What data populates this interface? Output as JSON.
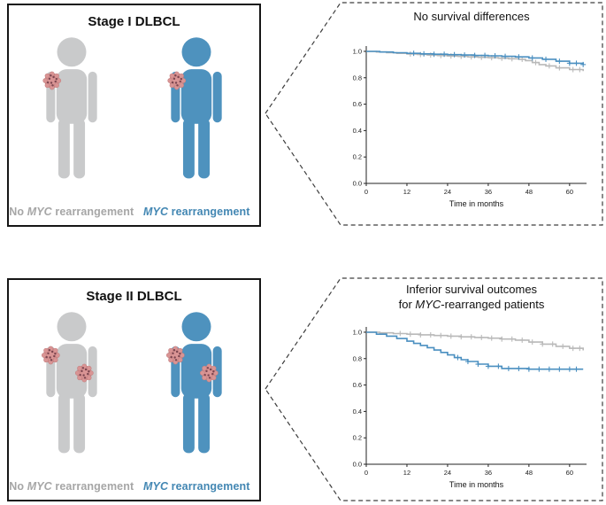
{
  "stage1": {
    "title": "Stage I DLBCL"
  },
  "stage2": {
    "title": "Stage II DLBCL"
  },
  "labels": {
    "no_myc": {
      "pre": "No ",
      "italic": "MYC",
      "post": " rearrangement"
    },
    "myc": {
      "italic": "MYC",
      "post": " rearrangement"
    }
  },
  "callout1": {
    "title": "No survival differences"
  },
  "callout2": {
    "title_line1": "Inferior survival outcomes",
    "title_line2": {
      "pre": "for ",
      "italic": "MYC",
      "post": "-rearranged patients"
    }
  },
  "colors": {
    "gray_person": "#c9cacb",
    "blue_person": "#4e92be",
    "gray_label": "#a6a6a6",
    "blue_label": "#4387b3",
    "gray_line": "#b9b9b9",
    "blue_line": "#4a8fc0",
    "tumor_fill": "#d99494",
    "tumor_stroke": "#c17e7e",
    "tumor_dot": "#7c4650"
  },
  "chart_data": [
    {
      "type": "line",
      "subtype": "kaplan-meier",
      "title": "No survival differences",
      "xlabel": "Time in months",
      "ylabel": "",
      "xlim": [
        0,
        65
      ],
      "ylim": [
        0,
        1.04
      ],
      "xticks": [
        0,
        12,
        24,
        36,
        48,
        60
      ],
      "yticks": [
        0.0,
        0.2,
        0.4,
        0.6,
        0.8,
        1.0
      ],
      "legend": "none",
      "grid": false,
      "series": [
        {
          "name": "No MYC rearrangement",
          "color": "#b9b9b9",
          "x": [
            0,
            3,
            6,
            9,
            12,
            15,
            18,
            21,
            24,
            27,
            30,
            33,
            36,
            39,
            42,
            45,
            47,
            49,
            51,
            53,
            56,
            60,
            64
          ],
          "y": [
            1.0,
            0.995,
            0.99,
            0.985,
            0.98,
            0.976,
            0.972,
            0.968,
            0.965,
            0.962,
            0.958,
            0.955,
            0.952,
            0.948,
            0.944,
            0.94,
            0.93,
            0.915,
            0.9,
            0.89,
            0.875,
            0.862,
            0.85
          ],
          "censor_x": [
            13,
            16,
            19,
            22,
            25,
            28,
            31,
            34,
            37,
            40,
            43,
            46,
            50,
            54,
            57,
            61,
            63
          ]
        },
        {
          "name": "MYC rearrangement",
          "color": "#4a8fc0",
          "x": [
            0,
            4,
            8,
            12,
            16,
            20,
            24,
            28,
            32,
            36,
            40,
            44,
            48,
            52,
            56,
            60,
            64
          ],
          "y": [
            1.0,
            0.995,
            0.99,
            0.985,
            0.981,
            0.978,
            0.975,
            0.972,
            0.969,
            0.966,
            0.962,
            0.958,
            0.95,
            0.94,
            0.925,
            0.91,
            0.9
          ],
          "censor_x": [
            14,
            17,
            20,
            23,
            26,
            29,
            32,
            35,
            38,
            41,
            45,
            49,
            53,
            57,
            60,
            62,
            64
          ]
        }
      ]
    },
    {
      "type": "line",
      "subtype": "kaplan-meier",
      "title": "Inferior survival outcomes for MYC-rearranged patients",
      "xlabel": "Time in months",
      "ylabel": "",
      "xlim": [
        0,
        65
      ],
      "ylim": [
        0,
        1.04
      ],
      "xticks": [
        0,
        12,
        24,
        36,
        48,
        60
      ],
      "yticks": [
        0.0,
        0.2,
        0.4,
        0.6,
        0.8,
        1.0
      ],
      "legend": "none",
      "grid": false,
      "series": [
        {
          "name": "No MYC rearrangement",
          "color": "#b9b9b9",
          "x": [
            0,
            4,
            8,
            12,
            16,
            20,
            24,
            28,
            32,
            36,
            40,
            44,
            48,
            52,
            56,
            60,
            64
          ],
          "y": [
            1.0,
            0.995,
            0.99,
            0.985,
            0.98,
            0.975,
            0.97,
            0.965,
            0.96,
            0.955,
            0.948,
            0.94,
            0.925,
            0.91,
            0.893,
            0.878,
            0.862
          ],
          "censor_x": [
            10,
            13,
            16,
            19,
            22,
            25,
            28,
            31,
            34,
            37,
            40,
            43,
            46,
            49,
            52,
            55,
            58,
            61,
            63
          ]
        },
        {
          "name": "MYC rearrangement",
          "color": "#4a8fc0",
          "x": [
            0,
            3,
            6,
            9,
            12,
            14,
            16,
            18,
            20,
            22,
            24,
            26,
            28,
            30,
            33,
            36,
            40,
            48,
            64
          ],
          "y": [
            1.0,
            0.985,
            0.97,
            0.952,
            0.932,
            0.915,
            0.9,
            0.883,
            0.865,
            0.847,
            0.828,
            0.808,
            0.792,
            0.778,
            0.758,
            0.742,
            0.725,
            0.72,
            0.72
          ],
          "censor_x": [
            27,
            30,
            33,
            36,
            39,
            42,
            45,
            48,
            51,
            54,
            57,
            60,
            62
          ]
        }
      ]
    }
  ]
}
